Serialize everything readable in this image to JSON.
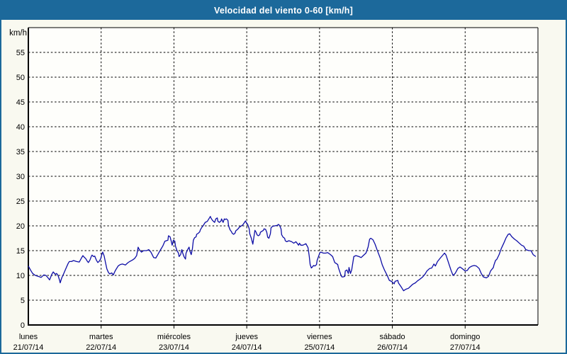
{
  "window": {
    "title": "Velocidad del viento 0-60 [km/h]"
  },
  "colors": {
    "titlebar_bg": "#1C699B",
    "title_text": "#FFFFFF",
    "frame_border": "#1C699B",
    "page_bg": "#F9F9F0",
    "plot_bg": "#FEFEFB",
    "line": "#0D0DA6",
    "grid": "#000000",
    "tick_text": "#000000"
  },
  "chart_data": {
    "type": "line",
    "title": "Velocidad del viento 0-60 [km/h]",
    "xlabel": "",
    "ylabel": "km/h",
    "ylim": [
      0,
      60
    ],
    "xlim": [
      0,
      168
    ],
    "x_unit": "hours_since_monday_00h",
    "grid": "dashed",
    "legend": "none",
    "y_ticks": [
      0,
      5,
      10,
      15,
      20,
      25,
      30,
      35,
      40,
      45,
      50,
      55
    ],
    "x_days": [
      {
        "name": "lunes",
        "date": "21/07/14"
      },
      {
        "name": "martes",
        "date": "22/07/14"
      },
      {
        "name": "miércoles",
        "date": "23/07/14"
      },
      {
        "name": "jueves",
        "date": "24/07/14"
      },
      {
        "name": "viernes",
        "date": "25/07/14"
      },
      {
        "name": "sábado",
        "date": "26/07/14"
      },
      {
        "name": "domingo",
        "date": "27/07/14"
      }
    ],
    "series": [
      {
        "name": "Velocidad del viento",
        "color": "#0D0DA6",
        "points": [
          [
            0,
            11.9
          ],
          [
            0.7,
            11.1
          ],
          [
            1.4,
            10.4
          ],
          [
            2.3,
            10.0
          ],
          [
            3.3,
            9.8
          ],
          [
            4.2,
            9.6
          ],
          [
            5.1,
            10.1
          ],
          [
            5.8,
            10.0
          ],
          [
            6.5,
            9.5
          ],
          [
            7.0,
            9.1
          ],
          [
            7.7,
            10.2
          ],
          [
            8.2,
            10.7
          ],
          [
            8.9,
            10.2
          ],
          [
            9.3,
            10.4
          ],
          [
            9.8,
            10.0
          ],
          [
            10.3,
            9.0
          ],
          [
            10.5,
            8.5
          ],
          [
            11.0,
            9.5
          ],
          [
            11.4,
            10.0
          ],
          [
            11.9,
            10.7
          ],
          [
            12.6,
            11.7
          ],
          [
            13.1,
            12.4
          ],
          [
            13.5,
            12.8
          ],
          [
            14.2,
            12.8
          ],
          [
            14.9,
            13.0
          ],
          [
            15.9,
            12.8
          ],
          [
            16.8,
            12.7
          ],
          [
            17.5,
            13.5
          ],
          [
            18.0,
            14.0
          ],
          [
            18.4,
            13.7
          ],
          [
            18.9,
            13.4
          ],
          [
            19.4,
            12.9
          ],
          [
            19.8,
            12.6
          ],
          [
            20.3,
            13.1
          ],
          [
            20.8,
            13.9
          ],
          [
            21.0,
            14.1
          ],
          [
            21.5,
            13.8
          ],
          [
            21.9,
            13.9
          ],
          [
            22.4,
            13.1
          ],
          [
            22.9,
            12.6
          ],
          [
            23.3,
            12.8
          ],
          [
            23.8,
            13.3
          ],
          [
            24.3,
            14.4
          ],
          [
            24.5,
            14.7
          ],
          [
            25.0,
            13.9
          ],
          [
            25.4,
            12.7
          ],
          [
            25.9,
            11.3
          ],
          [
            26.4,
            10.6
          ],
          [
            26.8,
            10.3
          ],
          [
            27.5,
            10.5
          ],
          [
            28.0,
            10.1
          ],
          [
            28.7,
            11.0
          ],
          [
            29.6,
            11.9
          ],
          [
            30.3,
            12.2
          ],
          [
            31.0,
            12.3
          ],
          [
            32.0,
            12.1
          ],
          [
            32.7,
            12.5
          ],
          [
            33.4,
            12.8
          ],
          [
            34.3,
            13.1
          ],
          [
            35.0,
            13.4
          ],
          [
            35.7,
            14.0
          ],
          [
            36.2,
            15.7
          ],
          [
            36.6,
            15.2
          ],
          [
            37.3,
            14.7
          ],
          [
            38.0,
            15.0
          ],
          [
            39.0,
            15.0
          ],
          [
            39.7,
            15.2
          ],
          [
            40.4,
            14.7
          ],
          [
            41.3,
            13.6
          ],
          [
            42.0,
            13.5
          ],
          [
            42.7,
            14.2
          ],
          [
            43.6,
            15.2
          ],
          [
            44.3,
            15.9
          ],
          [
            45.0,
            16.9
          ],
          [
            46.0,
            17.1
          ],
          [
            46.2,
            18.0
          ],
          [
            46.7,
            17.8
          ],
          [
            47.1,
            16.9
          ],
          [
            47.4,
            16.1
          ],
          [
            47.8,
            17.1
          ],
          [
            48.3,
            16.9
          ],
          [
            48.5,
            15.9
          ],
          [
            49.0,
            15.0
          ],
          [
            49.5,
            14.5
          ],
          [
            49.7,
            13.8
          ],
          [
            50.2,
            14.2
          ],
          [
            50.6,
            15.2
          ],
          [
            50.9,
            14.5
          ],
          [
            51.3,
            13.8
          ],
          [
            51.8,
            13.3
          ],
          [
            52.0,
            14.5
          ],
          [
            52.5,
            15.2
          ],
          [
            53.0,
            15.7
          ],
          [
            53.2,
            15.0
          ],
          [
            53.7,
            14.2
          ],
          [
            54.1,
            15.4
          ],
          [
            54.4,
            17.1
          ],
          [
            54.8,
            17.6
          ],
          [
            55.3,
            17.8
          ],
          [
            55.5,
            18.3
          ],
          [
            56.0,
            18.5
          ],
          [
            56.5,
            18.8
          ],
          [
            56.7,
            19.2
          ],
          [
            57.2,
            19.7
          ],
          [
            57.6,
            20.0
          ],
          [
            58.3,
            20.7
          ],
          [
            59.0,
            20.9
          ],
          [
            60.0,
            21.9
          ],
          [
            60.2,
            21.6
          ],
          [
            60.7,
            21.1
          ],
          [
            61.4,
            20.7
          ],
          [
            61.8,
            21.4
          ],
          [
            62.3,
            21.6
          ],
          [
            62.5,
            20.9
          ],
          [
            63.0,
            20.7
          ],
          [
            63.5,
            21.0
          ],
          [
            63.7,
            21.4
          ],
          [
            64.2,
            20.7
          ],
          [
            64.6,
            21.4
          ],
          [
            64.9,
            21.3
          ],
          [
            65.3,
            21.4
          ],
          [
            65.8,
            21.1
          ],
          [
            66.0,
            20.0
          ],
          [
            66.5,
            19.2
          ],
          [
            67.0,
            18.8
          ],
          [
            67.2,
            18.5
          ],
          [
            67.7,
            18.3
          ],
          [
            68.1,
            18.5
          ],
          [
            68.4,
            19.0
          ],
          [
            68.8,
            19.2
          ],
          [
            69.3,
            19.5
          ],
          [
            69.5,
            19.7
          ],
          [
            70.0,
            19.9
          ],
          [
            70.7,
            20.2
          ],
          [
            71.6,
            21.0
          ],
          [
            71.9,
            20.6
          ],
          [
            72.3,
            20.3
          ],
          [
            72.8,
            19.4
          ],
          [
            73.0,
            18.4
          ],
          [
            73.5,
            17.5
          ],
          [
            74.0,
            16.3
          ],
          [
            74.7,
            19.1
          ],
          [
            75.1,
            18.7
          ],
          [
            75.4,
            18.2
          ],
          [
            75.8,
            18.0
          ],
          [
            76.3,
            18.2
          ],
          [
            76.5,
            18.7
          ],
          [
            77.0,
            18.9
          ],
          [
            77.5,
            19.1
          ],
          [
            77.7,
            19.4
          ],
          [
            78.2,
            19.3
          ],
          [
            78.6,
            18.7
          ],
          [
            78.9,
            17.7
          ],
          [
            79.3,
            17.5
          ],
          [
            79.8,
            18.4
          ],
          [
            80.0,
            19.6
          ],
          [
            80.5,
            19.9
          ],
          [
            81.2,
            20.0
          ],
          [
            82.1,
            20.1
          ],
          [
            82.4,
            20.3
          ],
          [
            82.8,
            20.1
          ],
          [
            83.3,
            19.4
          ],
          [
            83.5,
            18.2
          ],
          [
            84.0,
            17.7
          ],
          [
            84.5,
            17.5
          ],
          [
            84.7,
            17.0
          ],
          [
            85.2,
            16.8
          ],
          [
            85.9,
            17.0
          ],
          [
            86.8,
            16.8
          ],
          [
            87.5,
            16.5
          ],
          [
            88.2,
            16.8
          ],
          [
            89.1,
            16.1
          ],
          [
            89.4,
            16.5
          ],
          [
            89.8,
            16.1
          ],
          [
            90.5,
            16.1
          ],
          [
            91.5,
            16.4
          ],
          [
            92.2,
            15.6
          ],
          [
            92.6,
            13.9
          ],
          [
            92.9,
            12.2
          ],
          [
            93.3,
            11.5
          ],
          [
            93.8,
            11.8
          ],
          [
            94.0,
            12.0
          ],
          [
            94.5,
            11.9
          ],
          [
            95.0,
            12.2
          ],
          [
            95.2,
            13.0
          ],
          [
            95.7,
            13.9
          ],
          [
            96.1,
            14.6
          ],
          [
            96.4,
            14.7
          ],
          [
            96.8,
            14.6
          ],
          [
            97.3,
            14.5
          ],
          [
            98.0,
            14.5
          ],
          [
            98.7,
            14.6
          ],
          [
            99.6,
            14.2
          ],
          [
            100.3,
            13.8
          ],
          [
            101.0,
            12.6
          ],
          [
            102.0,
            12.2
          ],
          [
            102.2,
            11.6
          ],
          [
            102.7,
            10.7
          ],
          [
            103.1,
            10.0
          ],
          [
            103.4,
            9.7
          ],
          [
            103.8,
            9.7
          ],
          [
            104.3,
            9.8
          ],
          [
            104.5,
            10.9
          ],
          [
            105.0,
            11.1
          ],
          [
            105.5,
            10.4
          ],
          [
            105.7,
            11.6
          ],
          [
            106.2,
            10.4
          ],
          [
            106.6,
            11.1
          ],
          [
            107.3,
            13.8
          ],
          [
            108.0,
            14.0
          ],
          [
            109.0,
            13.8
          ],
          [
            109.7,
            13.6
          ],
          [
            110.4,
            14.0
          ],
          [
            111.3,
            14.5
          ],
          [
            112.0,
            15.7
          ],
          [
            112.5,
            17.3
          ],
          [
            112.9,
            17.5
          ],
          [
            113.6,
            17.2
          ],
          [
            114.3,
            16.3
          ],
          [
            115.0,
            15.1
          ],
          [
            116.0,
            13.5
          ],
          [
            116.7,
            12.1
          ],
          [
            117.4,
            11.1
          ],
          [
            118.3,
            10.0
          ],
          [
            119.0,
            9.0
          ],
          [
            119.7,
            8.8
          ],
          [
            120.6,
            8.3
          ],
          [
            120.9,
            8.8
          ],
          [
            121.8,
            9.0
          ],
          [
            122.0,
            8.5
          ],
          [
            123.0,
            7.6
          ],
          [
            123.7,
            6.9
          ],
          [
            124.4,
            7.2
          ],
          [
            125.3,
            7.4
          ],
          [
            126.0,
            7.8
          ],
          [
            126.7,
            8.2
          ],
          [
            127.6,
            8.5
          ],
          [
            128.3,
            8.9
          ],
          [
            129.0,
            9.2
          ],
          [
            130.0,
            9.7
          ],
          [
            130.7,
            10.2
          ],
          [
            131.4,
            10.9
          ],
          [
            132.3,
            11.4
          ],
          [
            133.0,
            11.5
          ],
          [
            133.7,
            12.3
          ],
          [
            134.2,
            11.9
          ],
          [
            134.9,
            12.8
          ],
          [
            135.8,
            13.5
          ],
          [
            136.5,
            14.0
          ],
          [
            137.2,
            14.5
          ],
          [
            137.7,
            14.1
          ],
          [
            138.4,
            12.8
          ],
          [
            139.3,
            11.1
          ],
          [
            140.0,
            10.0
          ],
          [
            140.7,
            10.4
          ],
          [
            141.6,
            11.4
          ],
          [
            142.3,
            11.7
          ],
          [
            143.0,
            11.4
          ],
          [
            144.0,
            10.9
          ],
          [
            144.7,
            11.0
          ],
          [
            145.4,
            11.6
          ],
          [
            146.3,
            11.9
          ],
          [
            147.0,
            12.0
          ],
          [
            147.7,
            11.9
          ],
          [
            148.6,
            11.4
          ],
          [
            149.3,
            10.4
          ],
          [
            150.0,
            9.7
          ],
          [
            151.0,
            9.5
          ],
          [
            151.7,
            9.8
          ],
          [
            152.4,
            10.9
          ],
          [
            153.3,
            11.6
          ],
          [
            153.5,
            12.1
          ],
          [
            154.0,
            13.0
          ],
          [
            154.5,
            13.3
          ],
          [
            155.2,
            14.2
          ],
          [
            155.9,
            15.4
          ],
          [
            156.8,
            16.6
          ],
          [
            157.5,
            17.6
          ],
          [
            158.2,
            18.3
          ],
          [
            158.7,
            18.4
          ],
          [
            159.4,
            17.8
          ],
          [
            160.3,
            17.3
          ],
          [
            161.0,
            17.0
          ],
          [
            161.7,
            16.6
          ],
          [
            162.6,
            16.1
          ],
          [
            163.3,
            15.9
          ],
          [
            164.0,
            15.2
          ],
          [
            165.0,
            15.0
          ],
          [
            165.7,
            15.0
          ],
          [
            166.4,
            14.2
          ],
          [
            167.3,
            13.8
          ]
        ]
      }
    ]
  }
}
